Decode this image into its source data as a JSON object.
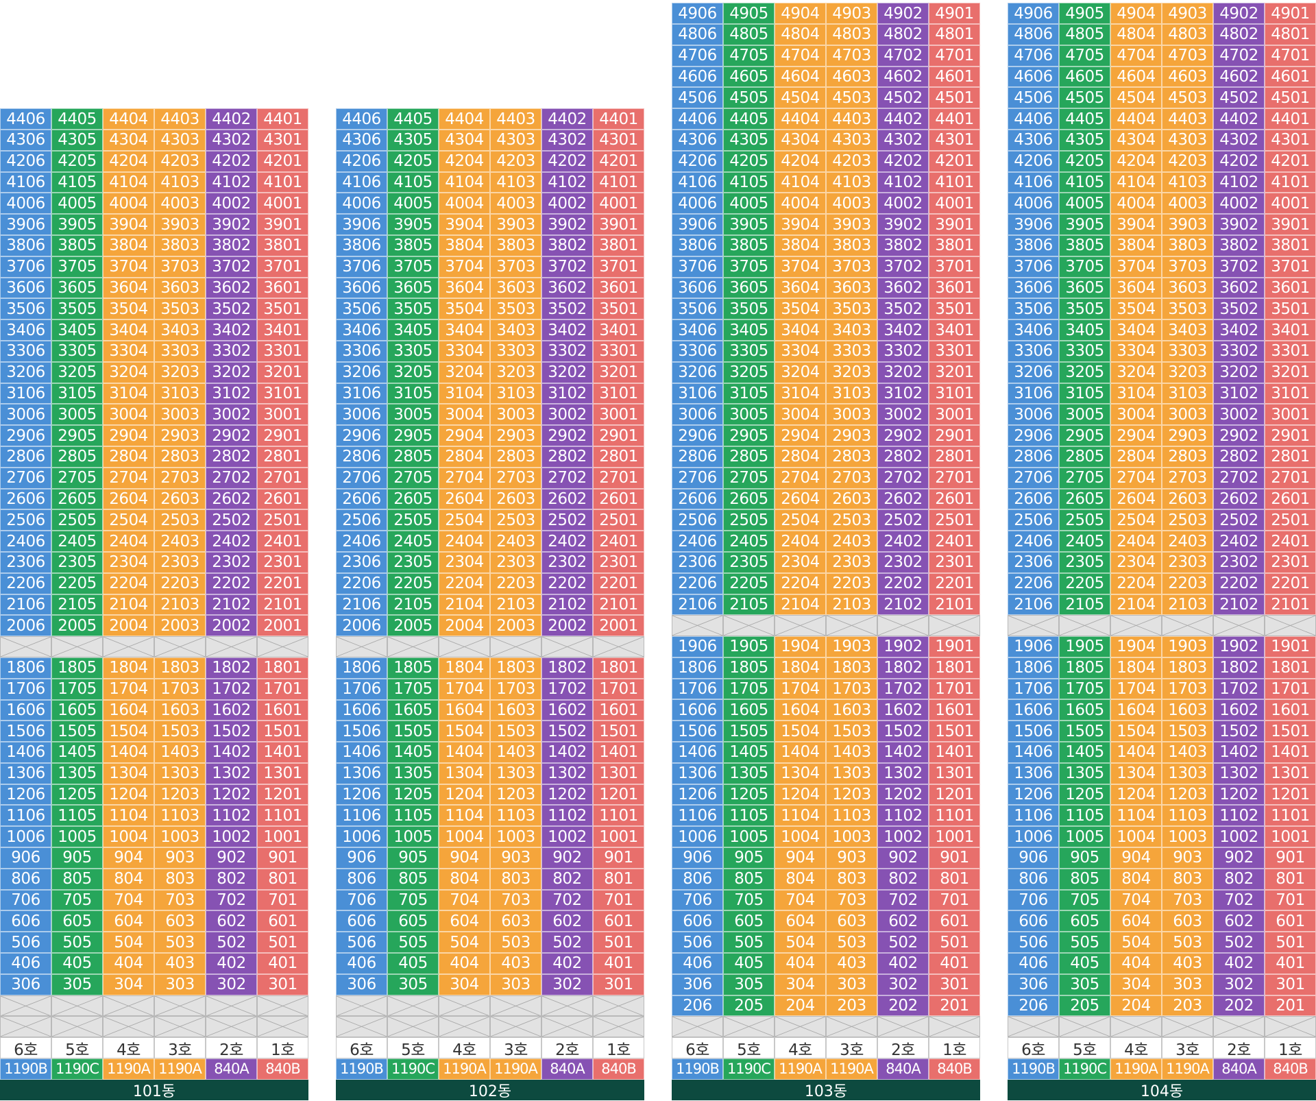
{
  "colors": {
    "c6": "#4a8fd6",
    "c5": "#26a65b",
    "c4": "#f5a53b",
    "c3": "#f5a53b",
    "c2": "#8652b3",
    "c1": "#e86f6c",
    "bar": "#0d4a3f"
  },
  "unit_labels": [
    "6호",
    "5호",
    "4호",
    "3호",
    "2호",
    "1호"
  ],
  "unit_types": [
    "1190B",
    "1190C",
    "1190A",
    "1190A",
    "840A",
    "840B"
  ],
  "buildings": [
    {
      "name": "101동",
      "top_floor": 44,
      "upper_min": 20,
      "upper_gap_floor": 19,
      "lower_max": 18,
      "lower_min": 3,
      "blank_rows_bottom": 2
    },
    {
      "name": "102동",
      "top_floor": 44,
      "upper_min": 20,
      "upper_gap_floor": 19,
      "lower_max": 18,
      "lower_min": 3,
      "blank_rows_bottom": 2
    },
    {
      "name": "103동",
      "top_floor": 49,
      "upper_min": 21,
      "upper_gap_floor": 20,
      "lower_max": 19,
      "lower_min": 2,
      "blank_rows_bottom": 1
    },
    {
      "name": "104동",
      "top_floor": 49,
      "upper_min": 21,
      "upper_gap_floor": 20,
      "lower_max": 19,
      "lower_min": 2,
      "blank_rows_bottom": 1
    }
  ]
}
